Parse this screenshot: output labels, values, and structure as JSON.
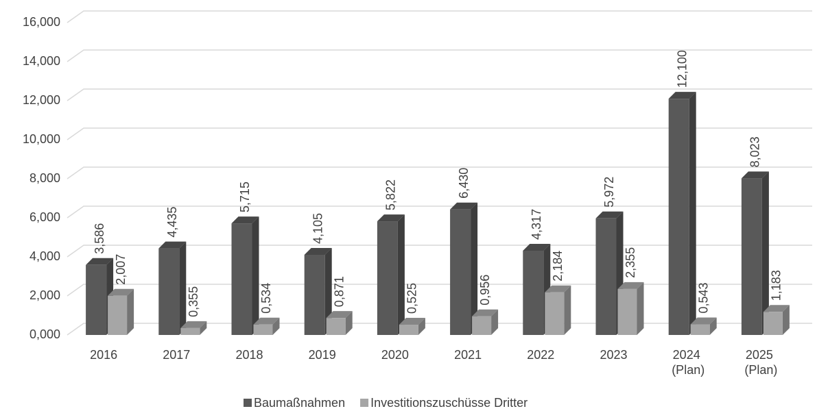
{
  "chart_data": {
    "type": "bar3d",
    "categories": [
      "2016",
      "2017",
      "2018",
      "2019",
      "2020",
      "2021",
      "2022",
      "2023",
      "2024 (Plan)",
      "2025 (Plan)"
    ],
    "series": [
      {
        "name": "Baumaßnahmen",
        "color": "#595959",
        "values": [
          3.586,
          4.435,
          5.715,
          4.105,
          5.822,
          6.43,
          4.317,
          5.972,
          12.1,
          8.023
        ],
        "value_labels": [
          "3,586",
          "4,435",
          "5,715",
          "4,105",
          "5,822",
          "6,430",
          "4,317",
          "5,972",
          "12,100",
          "8,023"
        ]
      },
      {
        "name": "Investitionszuschüsse Dritter",
        "color": "#a6a6a6",
        "values": [
          2.007,
          0.355,
          0.534,
          0.871,
          0.525,
          0.956,
          2.184,
          2.355,
          0.543,
          1.183
        ],
        "value_labels": [
          "2,007",
          "0,355",
          "0,534",
          "0,871",
          "0,525",
          "0,956",
          "2,184",
          "2,355",
          "0,543",
          "1,183"
        ]
      }
    ],
    "ylim": [
      0,
      16
    ],
    "yticks": [
      {
        "value": 0,
        "label": "0,000"
      },
      {
        "value": 2,
        "label": "2,000"
      },
      {
        "value": 4,
        "label": "4,000"
      },
      {
        "value": 6,
        "label": "6,000"
      },
      {
        "value": 8,
        "label": "8,000"
      },
      {
        "value": 10,
        "label": "10,000"
      },
      {
        "value": 12,
        "label": "12,000"
      },
      {
        "value": 14,
        "label": "14,000"
      },
      {
        "value": 16,
        "label": "16,000"
      }
    ],
    "grid": true,
    "legend": "bottom"
  }
}
